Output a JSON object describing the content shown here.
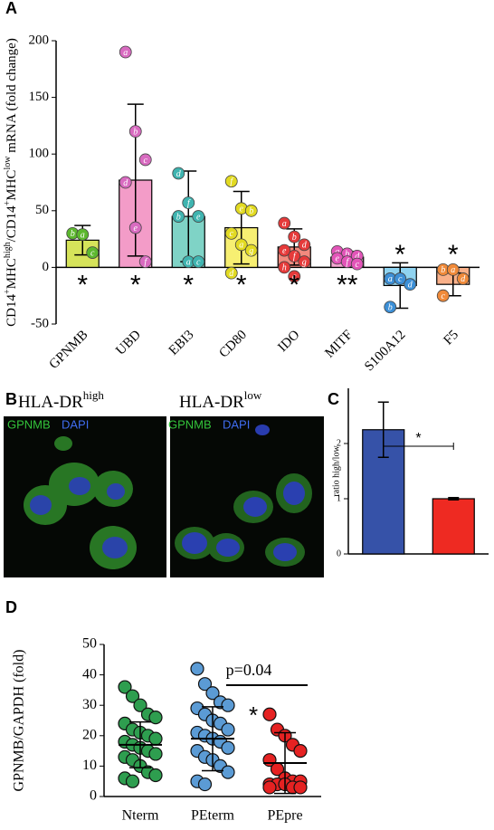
{
  "chart_data": [
    {
      "type": "bar",
      "panel_label": "A",
      "ylabel_parts": [
        "CD14",
        "+",
        "MHC",
        "high",
        "/CD14",
        "+",
        "MHC",
        "low",
        " mRNA (fold change)"
      ],
      "categories": [
        "GPNMB",
        "UBD",
        "EBI3",
        "CD80",
        "IDO",
        "MITF",
        "S100A12",
        "F5"
      ],
      "values": [
        24,
        77,
        45,
        35,
        18,
        9,
        -16,
        -15
      ],
      "errors": [
        13,
        67,
        40,
        32,
        16,
        5,
        20,
        10
      ],
      "colors": [
        "#d6e35a",
        "#f39cc8",
        "#7fd3c6",
        "#f7ef72",
        "#f28a7e",
        "#f6a8d3",
        "#8fd3f0",
        "#f9b089"
      ],
      "point_colors": [
        "#5cb82e",
        "#d86bc0",
        "#3fb4b0",
        "#e2da22",
        "#e53a3a",
        "#e255b8",
        "#3c8fd6",
        "#f08a3a"
      ],
      "points": [
        [
          30,
          29,
          13
        ],
        [
          190,
          120,
          95,
          75,
          35,
          5
        ],
        [
          83,
          57,
          45,
          45,
          5,
          5
        ],
        [
          76,
          52,
          50,
          30,
          20,
          15,
          -5
        ],
        [
          39,
          27,
          20,
          15,
          10,
          5,
          0,
          -8
        ],
        [
          14,
          12,
          10,
          8,
          5,
          3
        ],
        [
          -10,
          -10,
          -15,
          -35
        ],
        [
          -2,
          -2,
          -10,
          -25
        ]
      ],
      "point_labels": [
        [
          "b",
          "a",
          "c"
        ],
        [
          "a",
          "b",
          "c",
          "d",
          "e",
          "f"
        ],
        [
          "d",
          "f",
          "e",
          "b",
          "a",
          "c"
        ],
        [
          "f",
          "e",
          "b",
          "c",
          "a",
          "g",
          "d"
        ],
        [
          "a",
          "b",
          "d",
          "e",
          "f",
          "g",
          "h",
          "c"
        ],
        [
          "a",
          "b",
          "d",
          "e",
          "f",
          "c"
        ],
        [
          "a",
          "c",
          "d",
          "b"
        ],
        [
          "b",
          "a",
          "d",
          "c"
        ]
      ],
      "annotations": [
        "*",
        "*",
        "*",
        "*",
        "*",
        "**",
        "*",
        "*"
      ],
      "ylim": [
        -50,
        200
      ],
      "yticks": [
        -50,
        0,
        50,
        100,
        150,
        200
      ]
    },
    {
      "type": "bar",
      "panel_label": "C",
      "ylabel": "ratio high/low",
      "categories": [
        null,
        null
      ],
      "values": [
        2.25,
        1.0
      ],
      "errors": [
        0.5,
        0.02
      ],
      "colors": [
        "#3652a8",
        "#ee2a22"
      ],
      "significance": "*",
      "ylim": [
        0,
        3
      ],
      "yticks": [
        0,
        1,
        2
      ]
    },
    {
      "type": "strip",
      "panel_label": "D",
      "ylabel": "GPNMB/GAPDH (fold)",
      "categories": [
        "Nterm",
        "PEterm",
        "PEpre"
      ],
      "colors": [
        "#2e9e4f",
        "#5b9bd5",
        "#e52222"
      ],
      "points": [
        [
          36,
          33,
          30,
          27,
          26,
          24,
          22,
          21,
          20,
          19,
          18,
          17,
          16,
          15,
          14,
          13,
          12,
          10,
          8,
          7,
          6,
          5
        ],
        [
          42,
          37,
          34,
          31,
          30,
          29,
          27,
          25,
          24,
          22,
          21,
          20,
          19,
          18,
          16,
          15,
          13,
          12,
          10,
          8,
          5,
          4
        ],
        [
          27,
          22,
          20,
          17,
          15,
          12,
          9,
          6,
          5,
          5,
          4,
          4,
          4,
          3,
          3,
          3
        ]
      ],
      "means": [
        17,
        19,
        11
      ],
      "sds": [
        7.5,
        10.5,
        10
      ],
      "p_value_label": "p=0.04",
      "significance": "*",
      "ylim": [
        0,
        50
      ],
      "yticks": [
        0,
        10,
        20,
        30,
        40,
        50
      ]
    }
  ],
  "panel_b": {
    "label": "B",
    "images": [
      {
        "title_parts": [
          "HLA-DR",
          "high"
        ],
        "stains": [
          "GPNMB",
          "DAPI"
        ]
      },
      {
        "title_parts": [
          "HLA-DR",
          "low"
        ],
        "stains": [
          "GPNMB",
          "DAPI"
        ]
      }
    ]
  }
}
